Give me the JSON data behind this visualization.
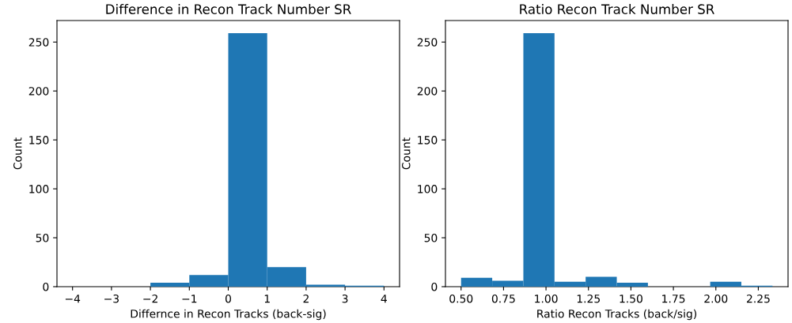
{
  "chart_data": [
    {
      "type": "histogram",
      "title": "Difference in Recon Track Number SR",
      "xlabel": "Differnce in Recon Tracks (back-sig)",
      "ylabel": "Count",
      "color": "#1f77b4",
      "bins": [
        -4,
        -3,
        -2,
        -1,
        0,
        1,
        2,
        3,
        4
      ],
      "values": [
        0,
        0,
        4,
        12,
        259,
        20,
        2,
        1
      ],
      "xlim": [
        -4.4,
        4.4
      ],
      "xticks": [
        {
          "value": -4,
          "label": "−4"
        },
        {
          "value": -3,
          "label": "−3"
        },
        {
          "value": -2,
          "label": "−2"
        },
        {
          "value": -1,
          "label": "−1"
        },
        0,
        1,
        2,
        3,
        4
      ],
      "ylim": [
        0,
        272
      ],
      "yticks": [
        0,
        50,
        100,
        150,
        200,
        250
      ],
      "grid": false
    },
    {
      "type": "histogram",
      "title": "Ratio Recon Track Number SR",
      "xlabel": "Ratio Recon Tracks (back/sig)",
      "ylabel": "Count",
      "color": "#1f77b4",
      "bins": [
        0.5,
        0.6833,
        0.8667,
        1.05,
        1.2333,
        1.4167,
        1.6,
        1.7833,
        1.9667,
        2.15,
        2.3333
      ],
      "values": [
        9,
        6,
        259,
        5,
        10,
        4,
        0,
        0,
        5,
        1
      ],
      "xlim": [
        0.408,
        2.425
      ],
      "xticks": [
        {
          "value": 0.5,
          "label": "0.50"
        },
        {
          "value": 0.75,
          "label": "0.75"
        },
        {
          "value": 1.0,
          "label": "1.00"
        },
        {
          "value": 1.25,
          "label": "1.25"
        },
        {
          "value": 1.5,
          "label": "1.50"
        },
        {
          "value": 1.75,
          "label": "1.75"
        },
        {
          "value": 2.0,
          "label": "2.00"
        },
        {
          "value": 2.25,
          "label": "2.25"
        }
      ],
      "ylim": [
        0,
        272
      ],
      "yticks": [
        0,
        50,
        100,
        150,
        200,
        250
      ],
      "grid": false
    }
  ]
}
